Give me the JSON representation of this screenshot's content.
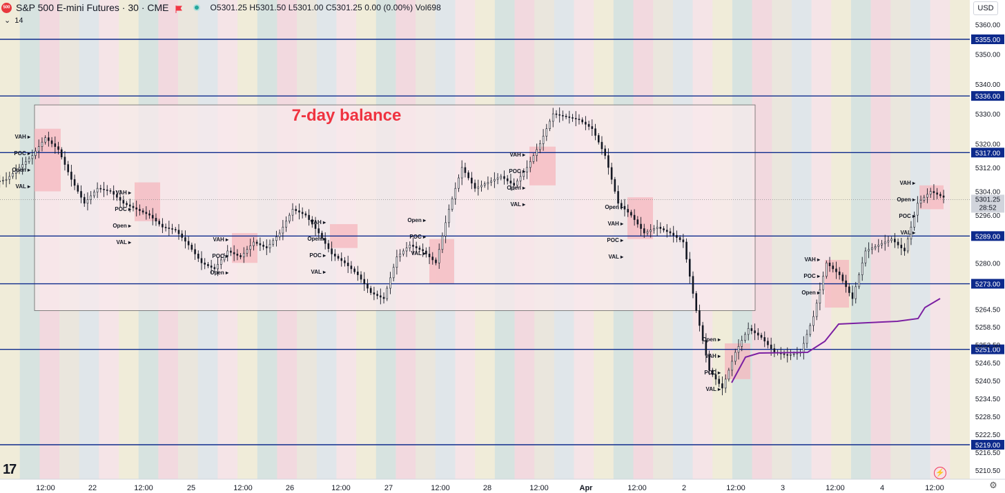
{
  "header": {
    "symbol_badge": "500",
    "title": "S&P 500 E-mini Futures · 30 · CME",
    "ohlc": "O5301.25  H5301.50  L5301.00  C5301.25  0.00 (0.00%)  Vol698",
    "indicator": "14",
    "currency": "USD"
  },
  "colors": {
    "up": "#131722",
    "down": "#131722",
    "level_line": "#0d2a8c",
    "balance_fill": "#f8e9ec",
    "profile_fill": "#f5b7bd",
    "annotation": "#ef3340",
    "vwap": "#7b1fa2",
    "session_bands": [
      "#f0ecd9",
      "#d7e3e0",
      "#f2d9df",
      "#eae6dd",
      "#e0e6ea",
      "#f5e4e7"
    ]
  },
  "chart_data": {
    "type": "candlestick",
    "title": "",
    "annotation": "7-day balance",
    "price_axis": {
      "ticks": [
        "5360.00",
        "5350.00",
        "5340.00",
        "5330.00",
        "5320.00",
        "5312.00",
        "5304.00",
        "5296.00",
        "5280.00",
        "5264.50",
        "5258.50",
        "5252.50",
        "5246.50",
        "5240.50",
        "5234.50",
        "5228.50",
        "5222.50",
        "5216.50",
        "5210.50"
      ],
      "level_labels": [
        "5355.00",
        "5336.00",
        "5317.00",
        "5289.00",
        "5273.00",
        "5251.00",
        "5219.00"
      ],
      "last_price": "5301.25",
      "countdown": "28:52"
    },
    "time_axis": [
      "12:00",
      "22",
      "12:00",
      "25",
      "12:00",
      "26",
      "12:00",
      "27",
      "12:00",
      "28",
      "12:00",
      "Apr",
      "12:00",
      "2",
      "12:00",
      "3",
      "12:00",
      "4",
      "12:00"
    ],
    "key_levels": [
      5355,
      5336,
      5317,
      5289,
      5273,
      5251,
      5219
    ],
    "balance_box": {
      "from": "21 12:00",
      "to": "2 12:00",
      "high": 5333,
      "low": 5264,
      "label": "7-day balance"
    },
    "profile_labels": [
      "VAH",
      "POC",
      "VAL",
      "Open"
    ],
    "sessions": [
      {
        "labels": [
          "VAH",
          "POC",
          "Open",
          "VAL"
        ]
      },
      {
        "labels": [
          "VAH",
          "POC",
          "Open",
          "VAL"
        ]
      },
      {
        "labels": [
          "VAH",
          "POC",
          "Open"
        ]
      },
      {
        "labels": [
          "VAH",
          "Open",
          "POC",
          "VAL"
        ]
      },
      {
        "labels": [
          "Open",
          "POC",
          "VAL"
        ]
      },
      {
        "labels": [
          "VAH",
          "POC",
          "Open",
          "VAL"
        ]
      },
      {
        "labels": [
          "Open",
          "VAH",
          "POC",
          "VAL"
        ]
      },
      {
        "labels": [
          "Open",
          "VAH",
          "POC",
          "VAL"
        ]
      },
      {
        "labels": [
          "VAH",
          "POC",
          "Open"
        ]
      },
      {
        "labels": [
          "VAH",
          "Open",
          "POC",
          "VAL"
        ]
      }
    ],
    "series": [
      {
        "name": "",
        "close": [
          5308,
          5312,
          5316,
          5322,
          5318,
          5308,
          5300,
          5305,
          5304,
          5300,
          5298,
          5296,
          5292,
          5291,
          5286,
          5280,
          5278,
          5284,
          5282,
          5287,
          5285,
          5290,
          5298,
          5296,
          5290,
          5283,
          5280,
          5276,
          5270,
          5268,
          5282,
          5286,
          5284,
          5280,
          5298,
          5312,
          5305,
          5307,
          5309,
          5306,
          5312,
          5320,
          5330,
          5329,
          5328,
          5325,
          5316,
          5300,
          5296,
          5290,
          5292,
          5290,
          5287,
          5264,
          5244,
          5238,
          5250,
          5258,
          5255,
          5250,
          5249,
          5250,
          5262,
          5280,
          5276,
          5268,
          5284,
          5286,
          5288,
          5284,
          5300,
          5304,
          5302
        ]
      }
    ]
  }
}
